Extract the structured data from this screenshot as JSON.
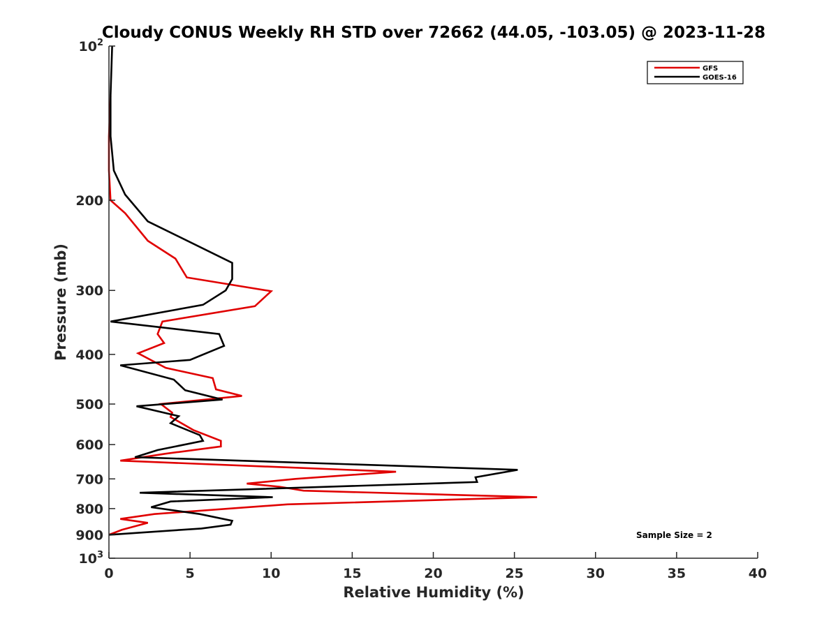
{
  "chart_data": {
    "type": "line",
    "title": "Cloudy CONUS Weekly RH STD over 72662 (44.05, -103.05) @ 2023-11-28",
    "xlabel": "Relative Humidity (%)",
    "ylabel": "Pressure (mb)",
    "xlim": [
      0,
      40
    ],
    "ylim": [
      100,
      1000
    ],
    "y_scale": "log",
    "y_reversed": true,
    "x_ticks": [
      "0",
      "5",
      "10",
      "15",
      "20",
      "25",
      "30",
      "35",
      "40"
    ],
    "y_ticks": [
      {
        "value": 100,
        "base": "10",
        "sup": "2"
      },
      {
        "value": 200,
        "base": "200",
        "sup": ""
      },
      {
        "value": 300,
        "base": "300",
        "sup": ""
      },
      {
        "value": 400,
        "base": "400",
        "sup": ""
      },
      {
        "value": 500,
        "base": "500",
        "sup": ""
      },
      {
        "value": 600,
        "base": "600",
        "sup": ""
      },
      {
        "value": 700,
        "base": "700",
        "sup": ""
      },
      {
        "value": 800,
        "base": "800",
        "sup": ""
      },
      {
        "value": 900,
        "base": "900",
        "sup": ""
      },
      {
        "value": 1000,
        "base": "10",
        "sup": "3"
      }
    ],
    "legend_position": "top-right",
    "series": [
      {
        "name": "GFS",
        "color": "#e00000",
        "points": [
          [
            0.1,
            125
          ],
          [
            0.0,
            150
          ],
          [
            0.0,
            175
          ],
          [
            0.1,
            200
          ],
          [
            1.0,
            212
          ],
          [
            2.4,
            240
          ],
          [
            4.1,
            260
          ],
          [
            4.8,
            283
          ],
          [
            10.0,
            301
          ],
          [
            9.0,
            322
          ],
          [
            3.3,
            345
          ],
          [
            3.0,
            365
          ],
          [
            3.4,
            380
          ],
          [
            1.8,
            398
          ],
          [
            3.5,
            425
          ],
          [
            6.4,
            445
          ],
          [
            6.6,
            468
          ],
          [
            8.2,
            482
          ],
          [
            3.2,
            500
          ],
          [
            3.9,
            520
          ],
          [
            3.8,
            530
          ],
          [
            5.2,
            562
          ],
          [
            6.9,
            590
          ],
          [
            6.9,
            605
          ],
          [
            3.5,
            625
          ],
          [
            0.7,
            645
          ],
          [
            17.7,
            678
          ],
          [
            11.5,
            700
          ],
          [
            8.5,
            715
          ],
          [
            10.5,
            725
          ],
          [
            12.0,
            738
          ],
          [
            26.4,
            760
          ],
          [
            11.0,
            785
          ],
          [
            2.8,
            820
          ],
          [
            0.7,
            838
          ],
          [
            2.4,
            853
          ],
          [
            0.8,
            880
          ],
          [
            0.0,
            900
          ]
        ]
      },
      {
        "name": "GOES-16",
        "color": "#000000",
        "points": [
          [
            0.2,
            100
          ],
          [
            0.1,
            125
          ],
          [
            0.1,
            150
          ],
          [
            0.3,
            175
          ],
          [
            1.0,
            195
          ],
          [
            2.4,
            220
          ],
          [
            7.6,
            265
          ],
          [
            7.6,
            285
          ],
          [
            7.2,
            300
          ],
          [
            5.8,
            320
          ],
          [
            0.1,
            345
          ],
          [
            6.8,
            365
          ],
          [
            7.1,
            385
          ],
          [
            5.0,
            410
          ],
          [
            0.7,
            420
          ],
          [
            4.0,
            448
          ],
          [
            4.7,
            470
          ],
          [
            7.0,
            490
          ],
          [
            1.7,
            505
          ],
          [
            4.3,
            528
          ],
          [
            3.8,
            545
          ],
          [
            5.6,
            575
          ],
          [
            5.8,
            590
          ],
          [
            3.0,
            615
          ],
          [
            1.6,
            635
          ],
          [
            25.2,
            672
          ],
          [
            22.6,
            695
          ],
          [
            22.7,
            710
          ],
          [
            1.9,
            745
          ],
          [
            10.1,
            760
          ],
          [
            3.8,
            775
          ],
          [
            2.6,
            795
          ],
          [
            5.6,
            820
          ],
          [
            7.6,
            845
          ],
          [
            7.5,
            860
          ],
          [
            5.7,
            875
          ],
          [
            0.0,
            900
          ]
        ]
      }
    ],
    "annotations": [
      {
        "text": "Sample Size = 2"
      }
    ]
  }
}
